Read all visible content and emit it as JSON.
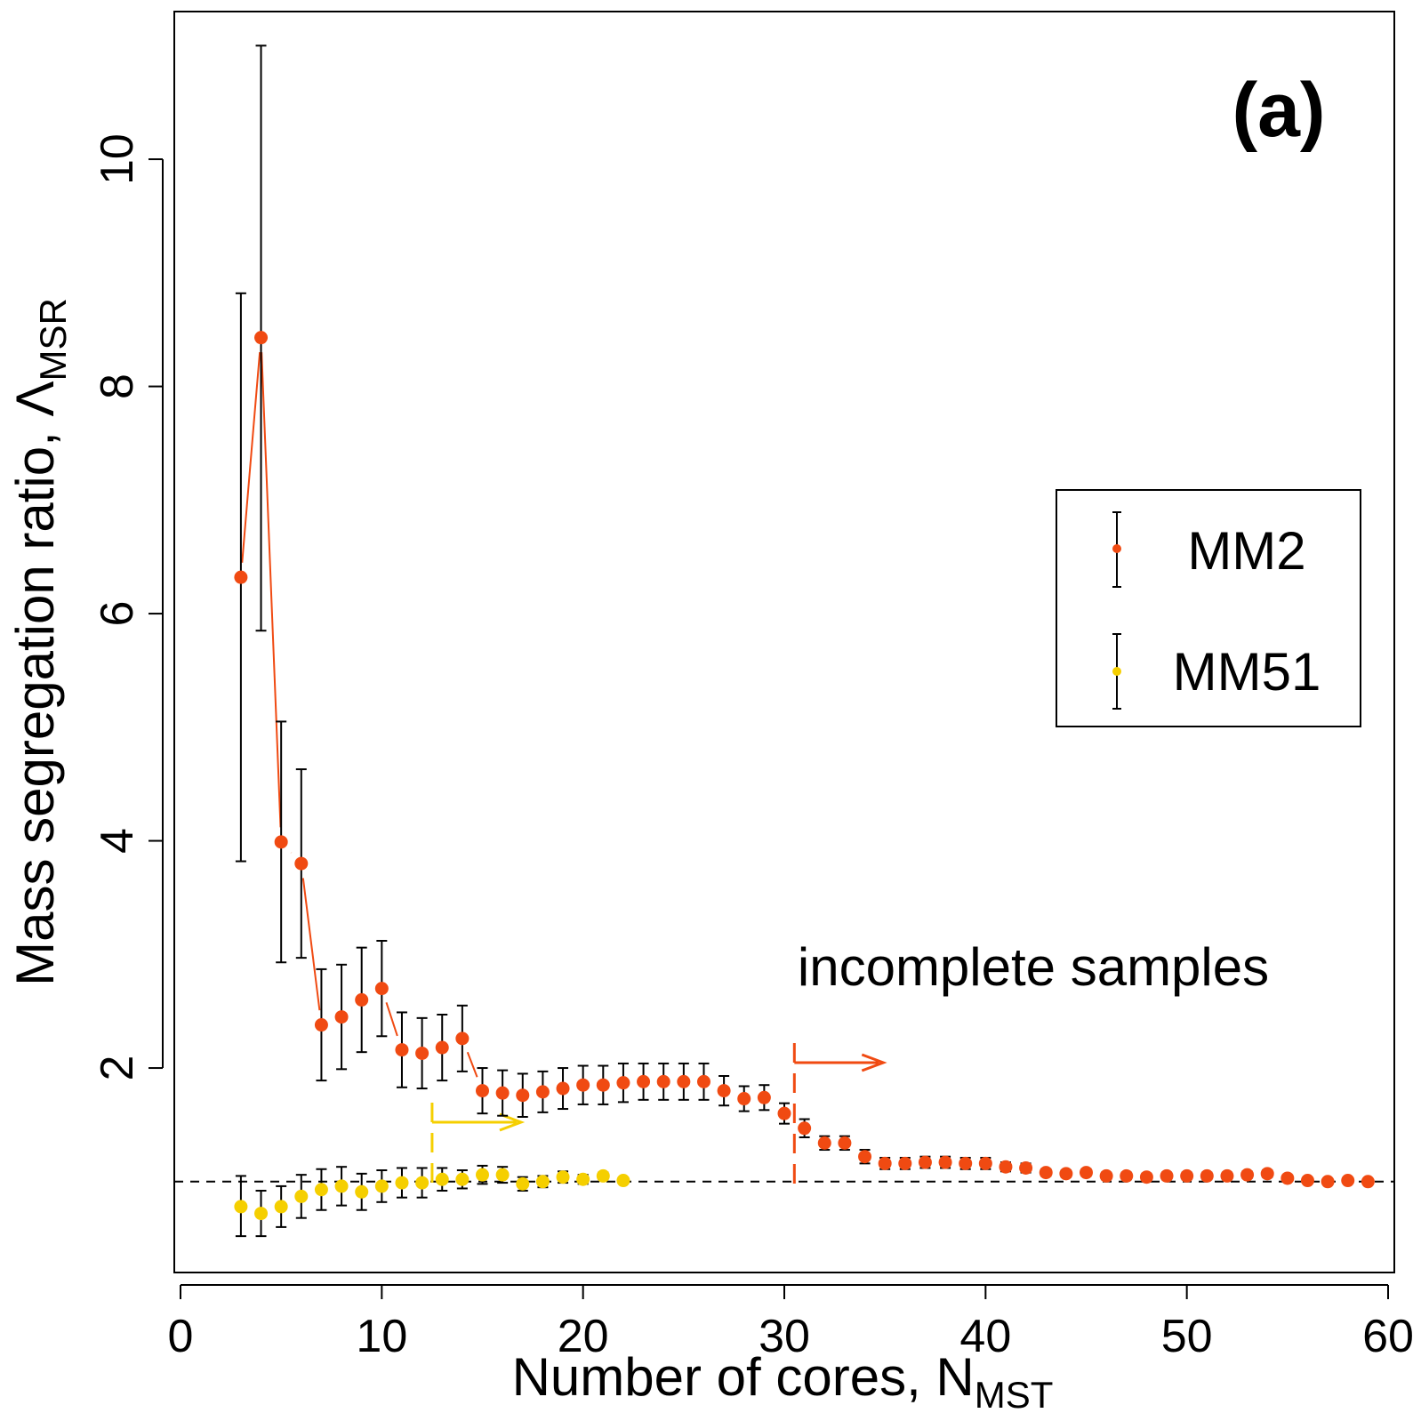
{
  "chart_data": {
    "type": "scatter",
    "panel_label": "(a)",
    "xlabel": "Number of cores, N",
    "xlabel_sub": "MST",
    "ylabel": "Mass segregation ratio, Λ",
    "ylabel_sub": "MSR",
    "xlim": [
      0,
      60
    ],
    "ylim": [
      0.2,
      11.3
    ],
    "x_ticks": [
      0,
      10,
      20,
      30,
      40,
      50,
      60
    ],
    "y_ticks": [
      2,
      4,
      6,
      8,
      10
    ],
    "x_tick_labels": [
      "0",
      "10",
      "20",
      "30",
      "40",
      "50",
      "60"
    ],
    "y_tick_labels": [
      "2",
      "4",
      "6",
      "8",
      "10"
    ],
    "reference_line": {
      "y": 1.0,
      "style": "dashed"
    },
    "annotation_text": "incomplete samples",
    "markers": [
      {
        "series": "MM2",
        "x": 30.5,
        "color": "#f04a12"
      },
      {
        "series": "MM51",
        "x": 12.5,
        "color": "#f5cf00"
      }
    ],
    "legend": {
      "position": "right",
      "entries": [
        {
          "label": "MM2",
          "color": "#f04a12"
        },
        {
          "label": "MM51",
          "color": "#f5cf00"
        }
      ]
    },
    "series": [
      {
        "name": "MM2",
        "color": "#f04a12",
        "points": [
          [
            3,
            6.32,
            3.82,
            8.82
          ],
          [
            4,
            8.43,
            5.85,
            11.0
          ],
          [
            5,
            3.99,
            2.93,
            5.05
          ],
          [
            6,
            3.8,
            2.97,
            4.63
          ],
          [
            7,
            2.38,
            1.89,
            2.87
          ],
          [
            8,
            2.45,
            1.99,
            2.91
          ],
          [
            9,
            2.6,
            2.14,
            3.06
          ],
          [
            10,
            2.7,
            2.28,
            3.12
          ],
          [
            11,
            2.16,
            1.83,
            2.49
          ],
          [
            12,
            2.13,
            1.82,
            2.44
          ],
          [
            13,
            2.18,
            1.89,
            2.47
          ],
          [
            14,
            2.26,
            1.97,
            2.55
          ],
          [
            15,
            1.8,
            1.6,
            2.0
          ],
          [
            16,
            1.78,
            1.58,
            1.98
          ],
          [
            17,
            1.76,
            1.57,
            1.95
          ],
          [
            18,
            1.79,
            1.61,
            1.97
          ],
          [
            19,
            1.82,
            1.64,
            2.0
          ],
          [
            20,
            1.85,
            1.68,
            2.02
          ],
          [
            21,
            1.85,
            1.68,
            2.02
          ],
          [
            22,
            1.87,
            1.7,
            2.04
          ],
          [
            23,
            1.88,
            1.72,
            2.04
          ],
          [
            24,
            1.88,
            1.72,
            2.04
          ],
          [
            25,
            1.88,
            1.72,
            2.04
          ],
          [
            26,
            1.88,
            1.72,
            2.04
          ],
          [
            27,
            1.8,
            1.67,
            1.93
          ],
          [
            28,
            1.73,
            1.62,
            1.84
          ],
          [
            29,
            1.74,
            1.63,
            1.85
          ],
          [
            30,
            1.6,
            1.51,
            1.69
          ],
          [
            31,
            1.47,
            1.39,
            1.55
          ],
          [
            32,
            1.34,
            1.28,
            1.4
          ],
          [
            33,
            1.34,
            1.28,
            1.4
          ],
          [
            34,
            1.22,
            1.16,
            1.28
          ],
          [
            35,
            1.16,
            1.11,
            1.21
          ],
          [
            36,
            1.16,
            1.11,
            1.21
          ],
          [
            37,
            1.17,
            1.12,
            1.22
          ],
          [
            38,
            1.17,
            1.12,
            1.22
          ],
          [
            39,
            1.16,
            1.11,
            1.21
          ],
          [
            40,
            1.16,
            1.11,
            1.21
          ],
          [
            41,
            1.13,
            1.09,
            1.17
          ],
          [
            42,
            1.12,
            1.08,
            1.16
          ],
          [
            43,
            1.08,
            1.05,
            1.11
          ],
          [
            44,
            1.07,
            1.04,
            1.1
          ],
          [
            45,
            1.08,
            1.05,
            1.11
          ],
          [
            46,
            1.05,
            1.02,
            1.08
          ],
          [
            47,
            1.05,
            1.02,
            1.08
          ],
          [
            48,
            1.04,
            1.01,
            1.07
          ],
          [
            49,
            1.05,
            1.02,
            1.08
          ],
          [
            50,
            1.05,
            1.02,
            1.08
          ],
          [
            51,
            1.05,
            1.02,
            1.08
          ],
          [
            52,
            1.05,
            1.02,
            1.08
          ],
          [
            53,
            1.06,
            1.03,
            1.09
          ],
          [
            54,
            1.07,
            1.04,
            1.1
          ],
          [
            55,
            1.03,
            1.01,
            1.05
          ],
          [
            56,
            1.01,
            0.99,
            1.03
          ],
          [
            57,
            1.0,
            0.98,
            1.02
          ],
          [
            58,
            1.01,
            0.99,
            1.03
          ],
          [
            59,
            1.0,
            0.98,
            1.02
          ]
        ]
      },
      {
        "name": "MM51",
        "color": "#f5cf00",
        "points": [
          [
            3,
            0.78,
            0.52,
            1.05
          ],
          [
            4,
            0.72,
            0.52,
            0.92
          ],
          [
            5,
            0.78,
            0.6,
            0.96
          ],
          [
            6,
            0.87,
            0.68,
            1.06
          ],
          [
            7,
            0.93,
            0.75,
            1.11
          ],
          [
            8,
            0.96,
            0.79,
            1.13
          ],
          [
            9,
            0.91,
            0.75,
            1.07
          ],
          [
            10,
            0.96,
            0.82,
            1.1
          ],
          [
            11,
            0.99,
            0.86,
            1.12
          ],
          [
            12,
            0.99,
            0.86,
            1.12
          ],
          [
            13,
            1.02,
            0.92,
            1.12
          ],
          [
            14,
            1.02,
            0.94,
            1.1
          ],
          [
            15,
            1.06,
            0.98,
            1.14
          ],
          [
            16,
            1.06,
            0.99,
            1.13
          ],
          [
            17,
            0.98,
            0.92,
            1.04
          ],
          [
            18,
            1.0,
            0.95,
            1.05
          ],
          [
            19,
            1.04,
            0.99,
            1.09
          ],
          [
            20,
            1.02,
            0.98,
            1.06
          ],
          [
            21,
            1.05,
            1.02,
            1.08
          ],
          [
            22,
            1.01,
            1.0,
            1.02
          ]
        ]
      }
    ]
  }
}
